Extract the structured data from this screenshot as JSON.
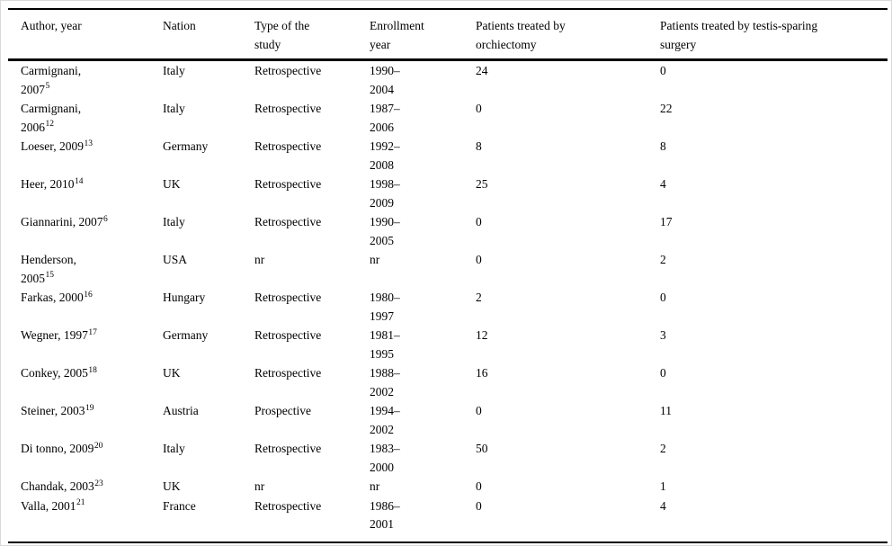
{
  "page": {
    "background": "#ffffff",
    "rule_color": "#000000",
    "outer_border_color": "#d9d9d9"
  },
  "table": {
    "columns": [
      "Author, year",
      "Nation",
      "Type of the\nstudy",
      "Enrollment\nyear",
      "Patients treated by\norchiectomy",
      "Patients treated by testis-sparing\nsurgery"
    ],
    "rows": [
      {
        "author": "Carmignani,\n2007",
        "ref": "5",
        "nation": "Italy",
        "study_type": "Retrospective",
        "enrollment": "1990–\n2004",
        "orchiectomy": "24",
        "tss": "0"
      },
      {
        "author": "Carmignani,\n2006",
        "ref": "12",
        "nation": "Italy",
        "study_type": "Retrospective",
        "enrollment": "1987–\n2006",
        "orchiectomy": "0",
        "tss": "22"
      },
      {
        "author": "Loeser, 2009",
        "ref": "13",
        "nation": "Germany",
        "study_type": "Retrospective",
        "enrollment": "1992–\n2008",
        "orchiectomy": "8",
        "tss": "8"
      },
      {
        "author": "Heer, 2010",
        "ref": "14",
        "nation": "UK",
        "study_type": "Retrospective",
        "enrollment": "1998–\n2009",
        "orchiectomy": "25",
        "tss": "4"
      },
      {
        "author": "Giannarini, 2007",
        "ref": "6",
        "nation": "Italy",
        "study_type": "Retrospective",
        "enrollment": "1990–\n2005",
        "orchiectomy": "0",
        "tss": "17"
      },
      {
        "author": "Henderson,\n2005",
        "ref": "15",
        "nation": "USA",
        "study_type": "nr",
        "enrollment": "nr",
        "orchiectomy": "0",
        "tss": "2"
      },
      {
        "author": "Farkas, 2000",
        "ref": "16",
        "nation": "Hungary",
        "study_type": "Retrospective",
        "enrollment": "1980–\n1997",
        "orchiectomy": "2",
        "tss": "0"
      },
      {
        "author": "Wegner, 1997",
        "ref": "17",
        "nation": "Germany",
        "study_type": "Retrospective",
        "enrollment": "1981–\n1995",
        "orchiectomy": "12",
        "tss": "3"
      },
      {
        "author": "Conkey, 2005",
        "ref": "18",
        "nation": "UK",
        "study_type": "Retrospective",
        "enrollment": "1988–\n2002",
        "orchiectomy": "16",
        "tss": "0"
      },
      {
        "author": "Steiner, 2003",
        "ref": "19",
        "nation": "Austria",
        "study_type": "Prospective",
        "enrollment": "1994–\n2002",
        "orchiectomy": "0",
        "tss": "11"
      },
      {
        "author": "Di tonno, 2009",
        "ref": "20",
        "nation": "Italy",
        "study_type": "Retrospective",
        "enrollment": "1983–\n2000",
        "orchiectomy": "50",
        "tss": "2"
      },
      {
        "author": "Chandak, 2003",
        "ref": "23",
        "nation": "UK",
        "study_type": "nr",
        "enrollment": "nr",
        "orchiectomy": "0",
        "tss": "1"
      },
      {
        "author": "Valla, 2001",
        "ref": "21",
        "nation": "France",
        "study_type": "Retrospective",
        "enrollment": "1986–\n2001",
        "orchiectomy": "0",
        "tss": "4"
      }
    ]
  }
}
